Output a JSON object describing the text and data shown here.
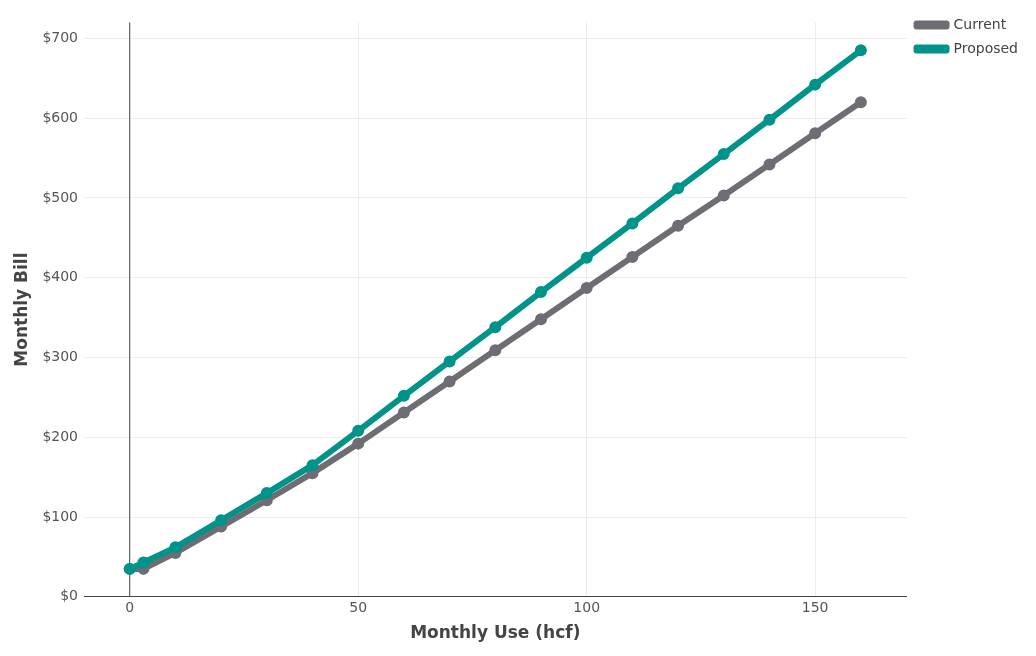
{
  "chart_data": {
    "type": "line",
    "xlabel": "Monthly Use (hcf)",
    "ylabel": "Monthly Bill",
    "x": [
      0,
      3,
      10,
      20,
      30,
      40,
      50,
      60,
      70,
      80,
      90,
      100,
      110,
      120,
      130,
      140,
      150,
      160
    ],
    "series": [
      {
        "name": "Current",
        "color": "#6e6d73",
        "values": [
          35,
          35,
          55,
          88,
          121,
          155,
          192,
          231,
          270,
          309,
          348,
          387,
          426,
          465,
          503,
          542,
          581,
          620
        ]
      },
      {
        "name": "Proposed",
        "color": "#00938a",
        "values": [
          35,
          43,
          62,
          96,
          130,
          165,
          208,
          252,
          295,
          338,
          382,
          425,
          468,
          512,
          555,
          598,
          642,
          685
        ]
      }
    ],
    "xlim": [
      -10,
      170
    ],
    "xticks": [
      0,
      50,
      100,
      150
    ],
    "ylim": [
      0,
      720
    ],
    "yticks": [
      {
        "value": 0,
        "label": "$0"
      },
      {
        "value": 100,
        "label": "$100"
      },
      {
        "value": 200,
        "label": "$200"
      },
      {
        "value": 300,
        "label": "$300"
      },
      {
        "value": 400,
        "label": "$400"
      },
      {
        "value": 500,
        "label": "$500"
      },
      {
        "value": 600,
        "label": "$600"
      },
      {
        "value": 700,
        "label": "$700"
      }
    ],
    "ref_lines": [
      {
        "axis": "x",
        "value": 0,
        "color": "#444444"
      }
    ],
    "grid": true,
    "legend": "top right",
    "marker": "circle",
    "line_style": "solid"
  }
}
